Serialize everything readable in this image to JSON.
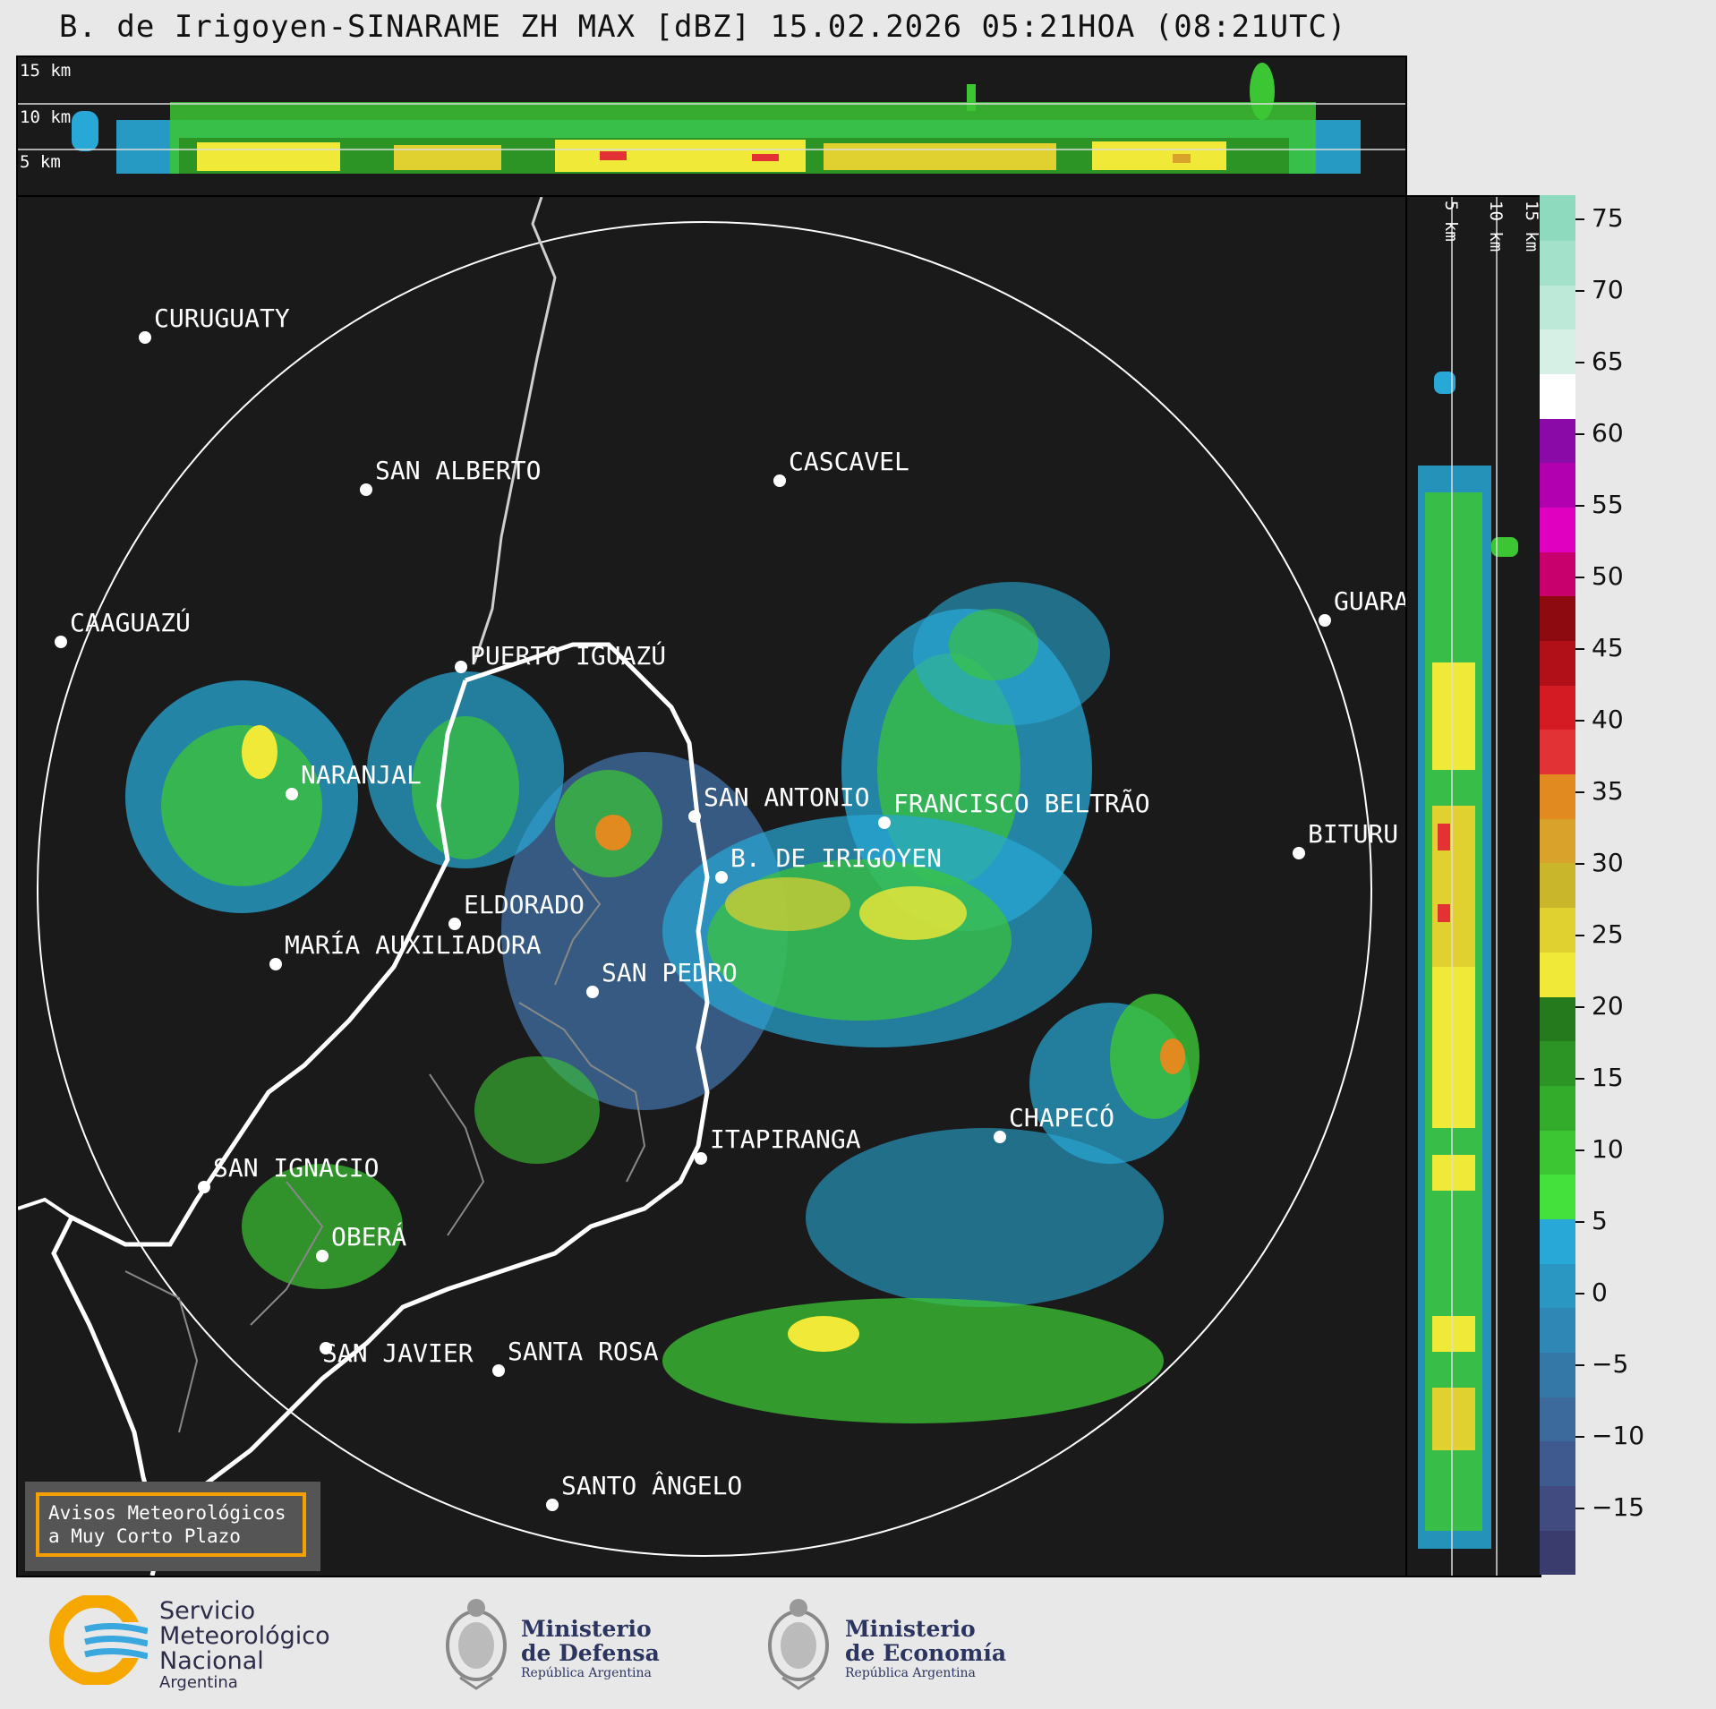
{
  "title": "B. de Irigoyen-SINARAME ZH MAX [dBZ] 15.02.2026 05:21HOA (08:21UTC)",
  "top_panel": {
    "heights": [
      "15 km",
      "10 km",
      "5 km"
    ]
  },
  "side_panel": {
    "heights": [
      "5 km",
      "10 km",
      "15 km"
    ]
  },
  "colorbar": {
    "ticks": [
      "75",
      "70",
      "65",
      "60",
      "55",
      "50",
      "45",
      "40",
      "35",
      "30",
      "25",
      "20",
      "15",
      "10",
      "5",
      "0",
      "−5",
      "−10",
      "−15"
    ],
    "colors": [
      "#3b3c6e",
      "#414b80",
      "#3f5a8f",
      "#3d6a9c",
      "#3478a8",
      "#2e87b4",
      "#2a96c2",
      "#28a8d6",
      "#44e03c",
      "#3cc634",
      "#33ac2c",
      "#2b9424",
      "#267a1e",
      "#f1e937",
      "#e0d030",
      "#c9b62a",
      "#d9a22a",
      "#e08a20",
      "#e23236",
      "#d41a22",
      "#b21018",
      "#8c0a10",
      "#c8006e",
      "#e000c0",
      "#b200b0",
      "#8a0aa8",
      "#ffffff",
      "#d6f0e6",
      "#bde9d9",
      "#a4e1cb",
      "#8edabe"
    ]
  },
  "cities": [
    {
      "name": "CURUGUATY"
    },
    {
      "name": "SAN ALBERTO"
    },
    {
      "name": "CASCAVEL"
    },
    {
      "name": "CAAGUAZÚ"
    },
    {
      "name": "GUARA"
    },
    {
      "name": "PUERTO IGUAZÚ"
    },
    {
      "name": "NARANJAL"
    },
    {
      "name": "SAN ANTONIO"
    },
    {
      "name": "FRANCISCO BELTRÃO"
    },
    {
      "name": "BITURU"
    },
    {
      "name": "B. DE IRIGOYEN"
    },
    {
      "name": "ELDORADO"
    },
    {
      "name": "MARÍA AUXILIADORA"
    },
    {
      "name": "SAN PEDRO"
    },
    {
      "name": "CHAPECÓ"
    },
    {
      "name": "ITAPIRANGA"
    },
    {
      "name": "SAN IGNACIO"
    },
    {
      "name": "OBERÁ"
    },
    {
      "name": "SAN JAVIER"
    },
    {
      "name": "SANTA ROSA"
    },
    {
      "name": "SANTO ÂNGELO"
    }
  ],
  "notice": {
    "line1": "Avisos Meteorológicos",
    "line2": "a Muy Corto Plazo"
  },
  "logos": {
    "smn": {
      "line1": "Servicio",
      "line2": "Meteorológico",
      "line3": "Nacional",
      "line4": "Argentina"
    },
    "defensa": {
      "line1": "Ministerio",
      "line2": "de Defensa",
      "line3": "República Argentina"
    },
    "economia": {
      "line1": "Ministerio",
      "line2": "de Economía",
      "line3": "República Argentina"
    }
  }
}
